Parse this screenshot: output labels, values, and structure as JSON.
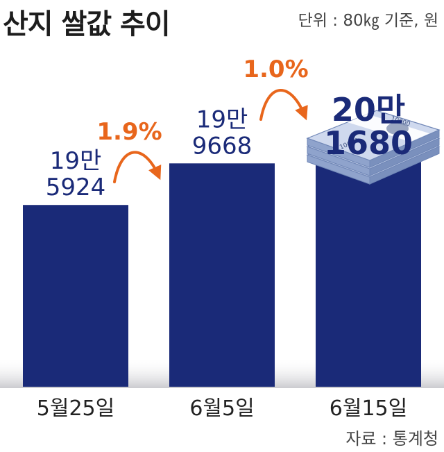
{
  "title": "산지 쌀값 추이",
  "unit_label": "단위 : 80㎏ 기준, 원",
  "source": "자료 : 통계청",
  "colors": {
    "bar": "#1a2a78",
    "value_text": "#1a2a78",
    "change": "#e8661c",
    "axis_text": "#222222"
  },
  "chart_data": {
    "type": "bar",
    "title": "산지 쌀값 추이",
    "categories": [
      "5월25일",
      "6월5일",
      "6월15일"
    ],
    "values": [
      195924,
      199668,
      201680
    ],
    "value_labels": [
      [
        "19만",
        "5924"
      ],
      [
        "19만",
        "9668"
      ],
      [
        "20만",
        "1680"
      ]
    ],
    "changes": [
      "1.9%",
      "1.0%"
    ],
    "unit": "원 (80㎏ 기준)",
    "ylim": [
      190000,
      205000
    ],
    "grid": false
  },
  "banknote": {
    "denomination": "10000"
  }
}
